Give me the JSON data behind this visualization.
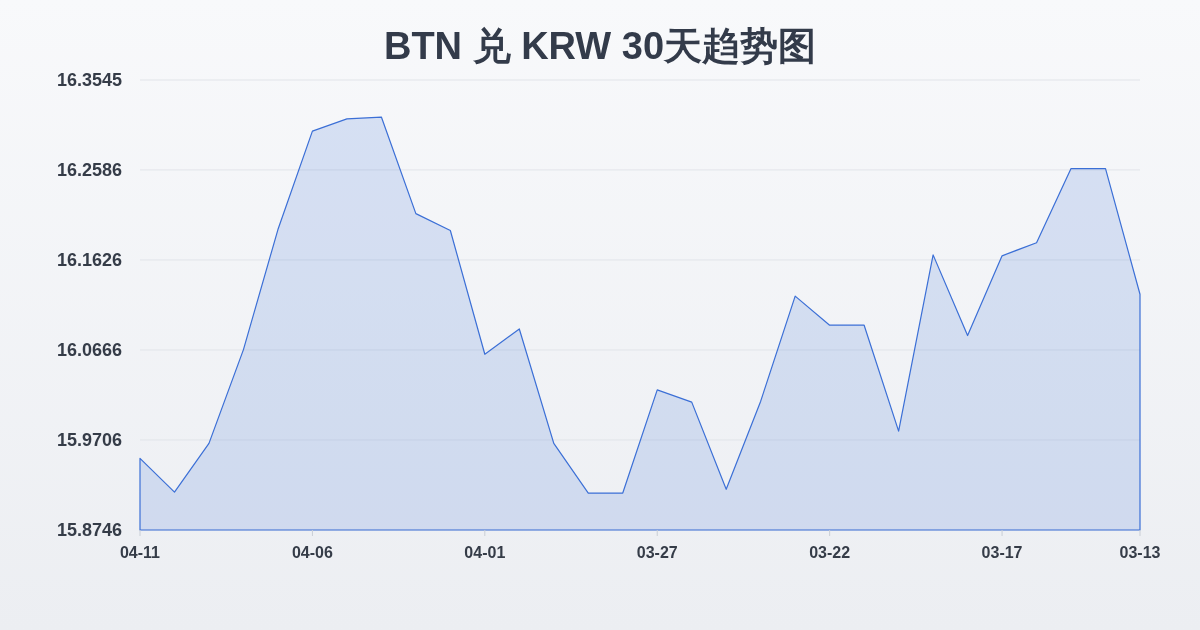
{
  "chart_data": {
    "type": "area",
    "title": "BTN 兑 KRW 30天趋势图",
    "categories": [
      "04-11",
      null,
      null,
      null,
      null,
      "04-06",
      null,
      null,
      null,
      null,
      "04-01",
      null,
      null,
      null,
      null,
      "03-27",
      null,
      null,
      null,
      null,
      "03-22",
      null,
      null,
      null,
      null,
      "03-17",
      null,
      null,
      null,
      "03-13"
    ],
    "values": [
      15.951,
      15.915,
      15.967,
      16.067,
      16.195,
      16.3,
      16.313,
      16.315,
      16.212,
      16.194,
      16.062,
      16.089,
      15.967,
      15.914,
      15.914,
      16.024,
      16.011,
      15.918,
      16.012,
      16.124,
      16.093,
      16.093,
      15.98,
      16.168,
      16.082,
      16.167,
      16.181,
      16.26,
      16.26,
      16.126
    ],
    "color": "#3b6fd6",
    "ylim": [
      15.8746,
      16.3545
    ],
    "yticks": [
      15.8746,
      15.9706,
      16.0666,
      16.1626,
      16.2586,
      16.3545
    ],
    "grid": "y"
  }
}
